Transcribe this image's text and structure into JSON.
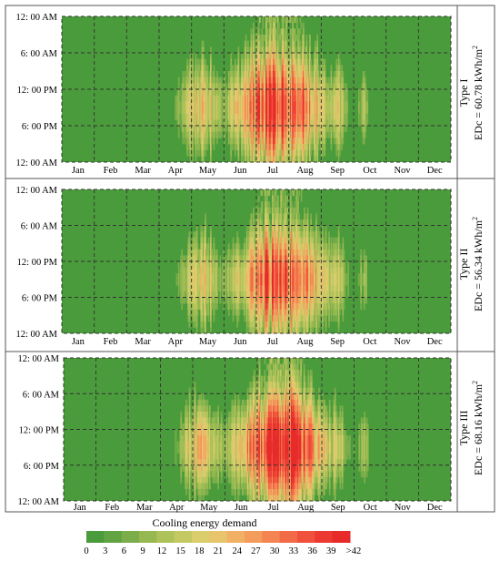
{
  "chart_data": [
    {
      "type": "heatmap",
      "panel_label": "Type I",
      "annotation": "EDc = 60.78 kWh/m",
      "annotation_sup": "2",
      "y_ticks": [
        "12: 00 AM",
        "6: 00 AM",
        "12: 00 PM",
        "6: 00 PM",
        "12: 00 AM"
      ],
      "x_ticks": [
        "Jan",
        "Feb",
        "Mar",
        "Apr",
        "May",
        "Jun",
        "Jul",
        "Aug",
        "Sep",
        "Oct",
        "Nov",
        "Dec"
      ],
      "intensity": 1.0
    },
    {
      "type": "heatmap",
      "panel_label": "Type II",
      "annotation": "EDc = 56.34 kWh/m",
      "annotation_sup": "2",
      "y_ticks": [
        "12: 00 AM",
        "6: 00 AM",
        "12: 00 PM",
        "6: 00 PM",
        "12: 00 AM"
      ],
      "x_ticks": [
        "Jan",
        "Feb",
        "Mar",
        "Apr",
        "May",
        "Jun",
        "Jul",
        "Aug",
        "Sep",
        "Oct",
        "Nov",
        "Dec"
      ],
      "intensity": 0.93
    },
    {
      "type": "heatmap",
      "panel_label": "Type III",
      "annotation": "EDc = 68.16 kWh/m",
      "annotation_sup": "2",
      "y_ticks": [
        "12: 00 AM",
        "6: 00 AM",
        "12: 00 PM",
        "6: 00 PM",
        "12: 00 AM"
      ],
      "x_ticks": [
        "Jan",
        "Feb",
        "Mar",
        "Apr",
        "May",
        "Jun",
        "Jul",
        "Aug",
        "Sep",
        "Oct",
        "Nov",
        "Dec"
      ],
      "intensity": 1.08
    }
  ],
  "colorbar": {
    "title": "Cooling energy demand",
    "labels": [
      "0",
      "3",
      "6",
      "9",
      "12",
      "15",
      "18",
      "21",
      "24",
      "27",
      "30",
      "33",
      "36",
      "39",
      ">42"
    ],
    "colors": [
      "#4a9b3b",
      "#62a443",
      "#7bae4b",
      "#95b851",
      "#aec25a",
      "#c5c963",
      "#d9cd6c",
      "#e8c46c",
      "#f0b165",
      "#f39c5c",
      "#f48452",
      "#f36a47",
      "#f0513c",
      "#ec3a32",
      "#e72b2b"
    ]
  }
}
